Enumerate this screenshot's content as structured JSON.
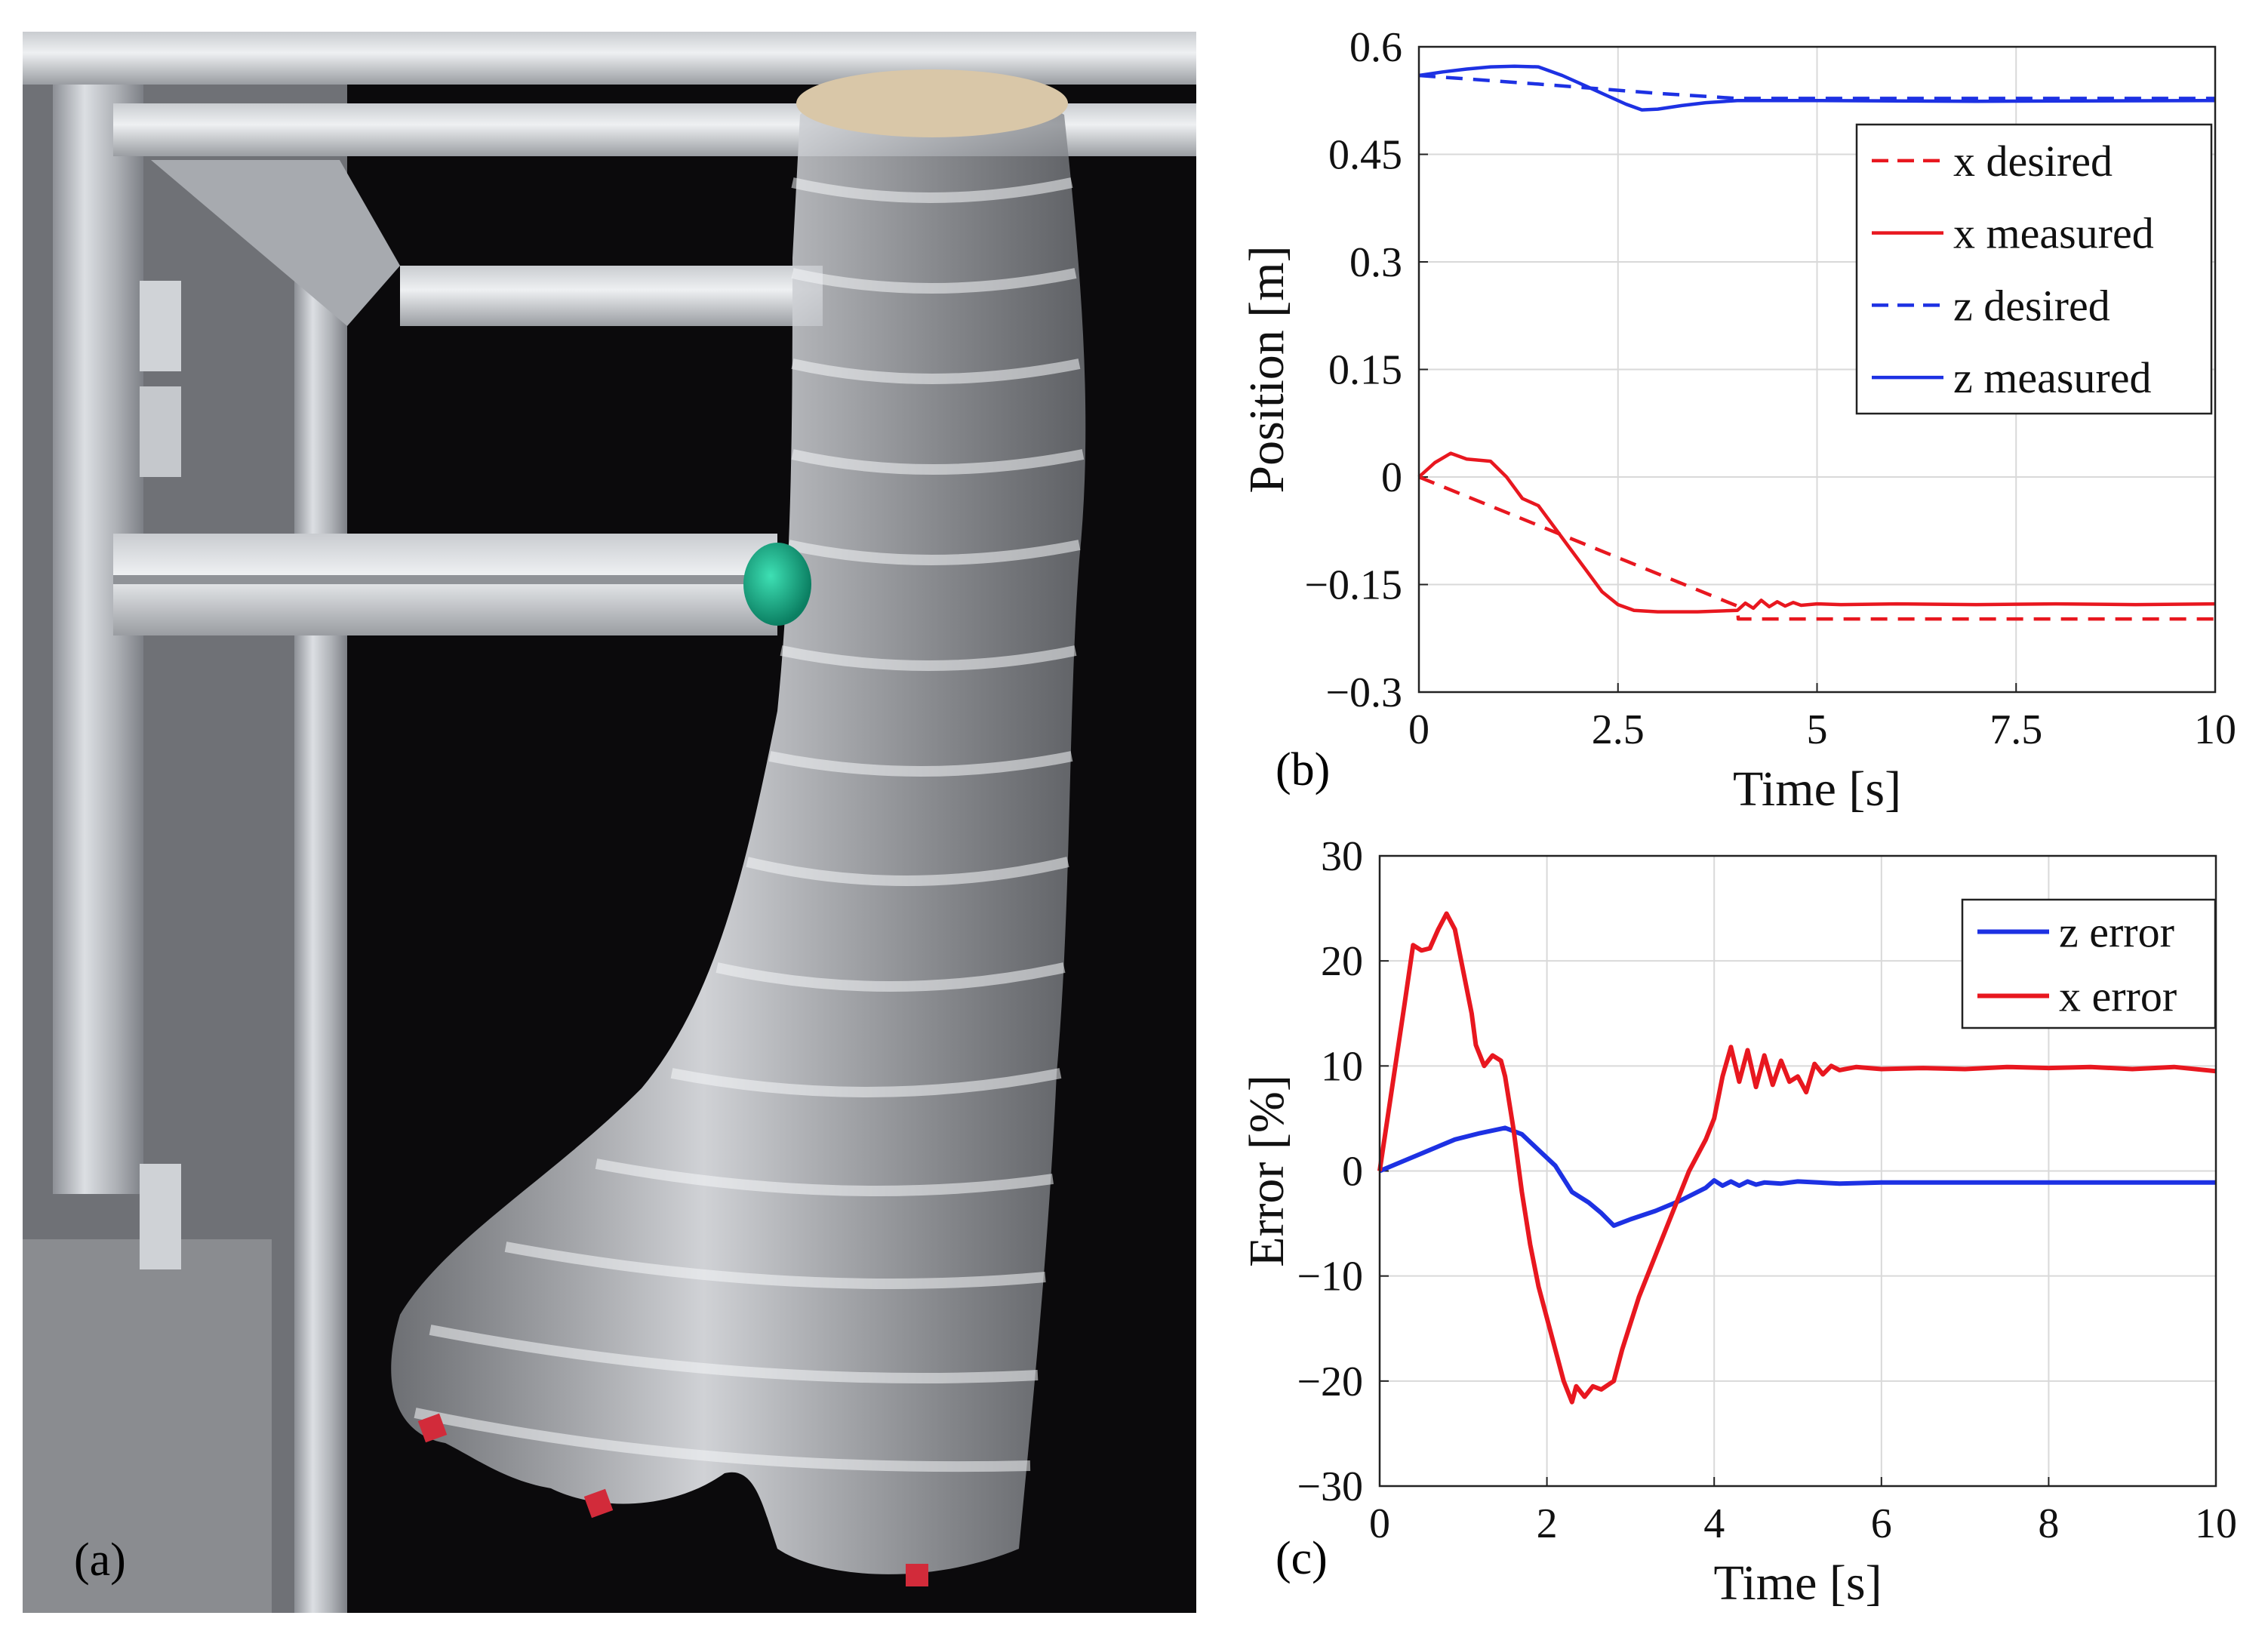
{
  "panels": {
    "a_label": "(a)",
    "b_label": "(b)",
    "c_label": "(c)"
  },
  "colors": {
    "x_series": "#e8171f",
    "z_series": "#1d31e3",
    "grid": "#d9d9d9",
    "photo_background": "#0b0a0c",
    "actuator_film": "#c9ccd2",
    "tip_marker": "#12a383",
    "frame_metal": "#b9bcc2"
  },
  "photo": {
    "description_icon": "inflatable-actuator-photo-icon",
    "marker_icon": "red-tape-marker-icon"
  },
  "chart_data": [
    {
      "id": "b",
      "type": "line",
      "title": "",
      "xlabel": "Time [s]",
      "ylabel": "Position [m]",
      "xlim": [
        0,
        10
      ],
      "ylim": [
        -0.3,
        0.6
      ],
      "xticks": [
        0,
        2.5,
        5,
        7.5,
        10
      ],
      "xtick_labels": [
        "0",
        "2.5",
        "5",
        "7.5",
        "10"
      ],
      "yticks": [
        -0.3,
        -0.15,
        0,
        0.15,
        0.3,
        0.45,
        0.6
      ],
      "ytick_labels": [
        "−0.3",
        "−0.15",
        "0",
        "0.15",
        "0.3",
        "0.45",
        "0.6"
      ],
      "grid": true,
      "legend_position": "top-right",
      "series": [
        {
          "name": "x desired",
          "color": "#e8171f",
          "dash": true,
          "points": [
            [
              0,
              0
            ],
            [
              4,
              -0.18
            ],
            [
              4.01,
              -0.198
            ],
            [
              10,
              -0.198
            ]
          ]
        },
        {
          "name": "x measured",
          "color": "#e8171f",
          "dash": false,
          "points": [
            [
              0,
              0
            ],
            [
              0.2,
              0.02
            ],
            [
              0.4,
              0.033
            ],
            [
              0.6,
              0.025
            ],
            [
              0.9,
              0.022
            ],
            [
              1.1,
              0.0
            ],
            [
              1.3,
              -0.03
            ],
            [
              1.5,
              -0.04
            ],
            [
              1.7,
              -0.07
            ],
            [
              1.9,
              -0.1
            ],
            [
              2.1,
              -0.13
            ],
            [
              2.3,
              -0.16
            ],
            [
              2.5,
              -0.178
            ],
            [
              2.7,
              -0.186
            ],
            [
              3.0,
              -0.188
            ],
            [
              3.5,
              -0.188
            ],
            [
              4.0,
              -0.186
            ],
            [
              4.1,
              -0.176
            ],
            [
              4.2,
              -0.183
            ],
            [
              4.3,
              -0.172
            ],
            [
              4.4,
              -0.181
            ],
            [
              4.5,
              -0.174
            ],
            [
              4.6,
              -0.18
            ],
            [
              4.7,
              -0.175
            ],
            [
              4.8,
              -0.179
            ],
            [
              5.0,
              -0.177
            ],
            [
              5.3,
              -0.178
            ],
            [
              6.0,
              -0.177
            ],
            [
              7.0,
              -0.178
            ],
            [
              8.0,
              -0.177
            ],
            [
              9.0,
              -0.178
            ],
            [
              10.0,
              -0.177
            ]
          ]
        },
        {
          "name": "z desired",
          "color": "#1d31e3",
          "dash": true,
          "points": [
            [
              0,
              0.56
            ],
            [
              1.5,
              0.548
            ],
            [
              3.0,
              0.535
            ],
            [
              4.0,
              0.528
            ],
            [
              10,
              0.528
            ]
          ]
        },
        {
          "name": "z measured",
          "color": "#1d31e3",
          "dash": false,
          "points": [
            [
              0,
              0.56
            ],
            [
              0.3,
              0.565
            ],
            [
              0.6,
              0.569
            ],
            [
              0.9,
              0.572
            ],
            [
              1.2,
              0.573
            ],
            [
              1.5,
              0.572
            ],
            [
              1.8,
              0.56
            ],
            [
              2.1,
              0.545
            ],
            [
              2.4,
              0.53
            ],
            [
              2.6,
              0.52
            ],
            [
              2.8,
              0.512
            ],
            [
              3.0,
              0.513
            ],
            [
              3.3,
              0.518
            ],
            [
              3.6,
              0.522
            ],
            [
              4.0,
              0.525
            ],
            [
              4.5,
              0.525
            ],
            [
              5,
              0.525
            ],
            [
              7,
              0.524
            ],
            [
              10,
              0.525
            ]
          ]
        }
      ]
    },
    {
      "id": "c",
      "type": "line",
      "title": "",
      "xlabel": "Time [s]",
      "ylabel": "Error [%]",
      "xlim": [
        0,
        10
      ],
      "ylim": [
        -30,
        30
      ],
      "xticks": [
        0,
        2,
        4,
        6,
        8,
        10
      ],
      "xtick_labels": [
        "0",
        "2",
        "4",
        "6",
        "8",
        "10"
      ],
      "yticks": [
        -30,
        -20,
        -10,
        0,
        10,
        20,
        30
      ],
      "ytick_labels": [
        "−30",
        "−20",
        "−10",
        "0",
        "10",
        "20",
        "30"
      ],
      "grid": true,
      "legend_position": "top-right",
      "series": [
        {
          "name": "z error",
          "color": "#1d31e3",
          "dash": false,
          "points": [
            [
              0,
              0
            ],
            [
              0.3,
              1
            ],
            [
              0.6,
              2
            ],
            [
              0.9,
              3
            ],
            [
              1.2,
              3.6
            ],
            [
              1.5,
              4.1
            ],
            [
              1.7,
              3.5
            ],
            [
              1.9,
              2
            ],
            [
              2.1,
              0.5
            ],
            [
              2.3,
              -2
            ],
            [
              2.5,
              -3
            ],
            [
              2.65,
              -4
            ],
            [
              2.8,
              -5.2
            ],
            [
              3.0,
              -4.6
            ],
            [
              3.3,
              -3.8
            ],
            [
              3.6,
              -2.8
            ],
            [
              3.9,
              -1.6
            ],
            [
              4.0,
              -0.9
            ],
            [
              4.1,
              -1.4
            ],
            [
              4.2,
              -1.0
            ],
            [
              4.3,
              -1.4
            ],
            [
              4.4,
              -1.0
            ],
            [
              4.5,
              -1.3
            ],
            [
              4.6,
              -1.1
            ],
            [
              4.8,
              -1.2
            ],
            [
              5.0,
              -1.0
            ],
            [
              5.5,
              -1.2
            ],
            [
              6,
              -1.1
            ],
            [
              7,
              -1.1
            ],
            [
              8,
              -1.1
            ],
            [
              9,
              -1.1
            ],
            [
              10,
              -1.1
            ]
          ]
        },
        {
          "name": "x error",
          "color": "#e8171f",
          "dash": false,
          "points": [
            [
              0,
              0
            ],
            [
              0.15,
              8
            ],
            [
              0.3,
              16
            ],
            [
              0.4,
              21.5
            ],
            [
              0.5,
              21
            ],
            [
              0.6,
              21.2
            ],
            [
              0.7,
              23
            ],
            [
              0.8,
              24.5
            ],
            [
              0.9,
              23
            ],
            [
              1.0,
              19
            ],
            [
              1.1,
              15
            ],
            [
              1.15,
              12
            ],
            [
              1.25,
              10
            ],
            [
              1.35,
              11
            ],
            [
              1.45,
              10.5
            ],
            [
              1.5,
              9
            ],
            [
              1.6,
              4
            ],
            [
              1.7,
              -2
            ],
            [
              1.8,
              -7
            ],
            [
              1.9,
              -11
            ],
            [
              2.0,
              -14
            ],
            [
              2.1,
              -17
            ],
            [
              2.2,
              -20
            ],
            [
              2.3,
              -22
            ],
            [
              2.35,
              -20.5
            ],
            [
              2.45,
              -21.5
            ],
            [
              2.55,
              -20.5
            ],
            [
              2.65,
              -20.8
            ],
            [
              2.8,
              -20
            ],
            [
              2.9,
              -17
            ],
            [
              3.1,
              -12
            ],
            [
              3.3,
              -8
            ],
            [
              3.5,
              -4
            ],
            [
              3.7,
              0
            ],
            [
              3.9,
              3
            ],
            [
              4.0,
              5
            ],
            [
              4.1,
              9
            ],
            [
              4.2,
              11.8
            ],
            [
              4.3,
              8.5
            ],
            [
              4.4,
              11.5
            ],
            [
              4.5,
              8
            ],
            [
              4.6,
              11
            ],
            [
              4.7,
              8.2
            ],
            [
              4.8,
              10.5
            ],
            [
              4.9,
              8.5
            ],
            [
              5.0,
              9
            ],
            [
              5.1,
              7.5
            ],
            [
              5.2,
              10.2
            ],
            [
              5.3,
              9.2
            ],
            [
              5.4,
              10
            ],
            [
              5.5,
              9.6
            ],
            [
              5.7,
              9.9
            ],
            [
              6.0,
              9.7
            ],
            [
              6.5,
              9.8
            ],
            [
              7,
              9.7
            ],
            [
              7.5,
              9.9
            ],
            [
              8,
              9.8
            ],
            [
              8.5,
              9.9
            ],
            [
              9,
              9.7
            ],
            [
              9.5,
              9.9
            ],
            [
              10,
              9.5
            ]
          ]
        }
      ]
    }
  ]
}
